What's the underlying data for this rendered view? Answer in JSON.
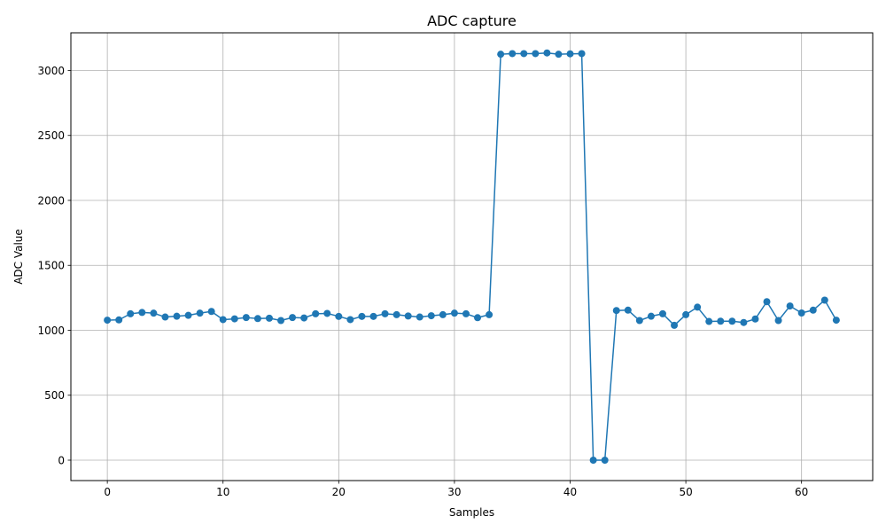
{
  "chart_data": {
    "type": "line",
    "title": "ADC capture",
    "xlabel": "Samples",
    "ylabel": "ADC Value",
    "xlim": [
      -3.15,
      66.15
    ],
    "ylim": [
      -157,
      3290
    ],
    "xticks": [
      0,
      10,
      20,
      30,
      40,
      50,
      60
    ],
    "yticks": [
      0,
      500,
      1000,
      1500,
      2000,
      2500,
      3000
    ],
    "grid": true,
    "marker": "circle",
    "line_color": "#1f77b4",
    "grid_color": "#b0b0b0",
    "series": [
      {
        "x": [
          0,
          1,
          2,
          3,
          4,
          5,
          6,
          7,
          8,
          9,
          10,
          11,
          12,
          13,
          14,
          15,
          16,
          17,
          18,
          19,
          20,
          21,
          22,
          23,
          24,
          25,
          26,
          27,
          28,
          29,
          30,
          31,
          32,
          33,
          34,
          35,
          36,
          37,
          38,
          39,
          40,
          41,
          42,
          43,
          44,
          45,
          46,
          47,
          48,
          49,
          50,
          51,
          52,
          53,
          54,
          55,
          56,
          57,
          58,
          59,
          60,
          61,
          62,
          63
        ],
        "values": [
          1078,
          1080,
          1127,
          1137,
          1132,
          1102,
          1108,
          1115,
          1132,
          1145,
          1082,
          1088,
          1098,
          1090,
          1093,
          1075,
          1098,
          1095,
          1127,
          1130,
          1107,
          1082,
          1107,
          1107,
          1127,
          1120,
          1110,
          1102,
          1112,
          1120,
          1132,
          1127,
          1097,
          1120,
          3125,
          3130,
          3130,
          3130,
          3135,
          3125,
          3128,
          3130,
          0,
          0,
          1152,
          1155,
          1075,
          1108,
          1127,
          1038,
          1120,
          1178,
          1068,
          1070,
          1070,
          1060,
          1087,
          1220,
          1075,
          1187,
          1133,
          1155,
          1232,
          1078
        ]
      }
    ]
  }
}
